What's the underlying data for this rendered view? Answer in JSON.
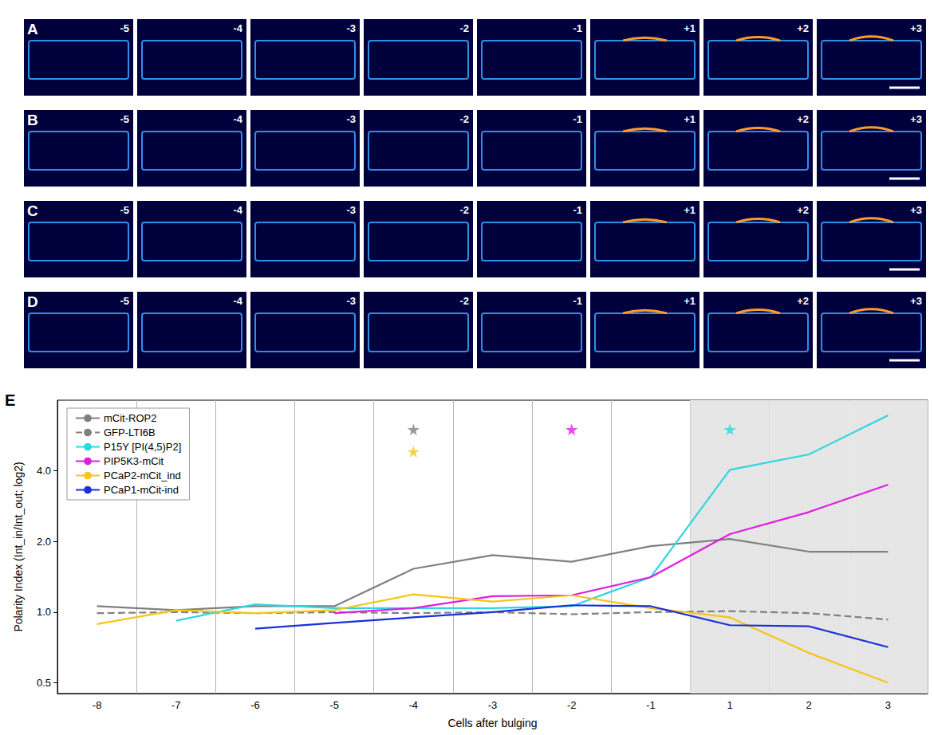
{
  "images": [
    {
      "label": "A",
      "frames": [
        "-5",
        "-4",
        "-3",
        "-2",
        "-1",
        "+1",
        "+2",
        "+3"
      ]
    },
    {
      "label": "B",
      "frames": [
        "-5",
        "-4",
        "-3",
        "-2",
        "-1",
        "+1",
        "+2",
        "+3"
      ]
    },
    {
      "label": "C",
      "frames": [
        "-5",
        "-4",
        "-3",
        "-2",
        "-1",
        "+1",
        "+2",
        "+3"
      ]
    },
    {
      "label": "D",
      "frames": [
        "-5",
        "-4",
        "-3",
        "-2",
        "-1",
        "+1",
        "+2",
        "+3"
      ]
    }
  ],
  "chart_panel": "E",
  "chart_data": {
    "type": "line",
    "x_label": "Cells after bulging",
    "y_label": "Polarity Index (Int_in/Int_out; log2)",
    "categories": [
      "-8",
      "-7",
      "-6",
      "-5",
      "-4",
      "-3",
      "-2",
      "-1",
      "1",
      "2",
      "3"
    ],
    "series": [
      {
        "name": "mCit-ROP2",
        "color": "#808080",
        "line_style": "solid",
        "values": [
          1.06,
          1.02,
          1.06,
          1.06,
          1.53,
          1.75,
          1.64,
          1.91,
          2.05,
          1.81,
          1.81
        ]
      },
      {
        "name": "GFP-LTI6B",
        "color": "#808080",
        "line_style": "dashed",
        "values": [
          0.99,
          1.0,
          0.99,
          1.0,
          0.99,
          1.0,
          0.98,
          1.0,
          1.01,
          0.99,
          0.93
        ]
      },
      {
        "name": "P15Y [PI(4,5)P2]",
        "color": "#2ED6E0",
        "line_style": "solid",
        "values": [
          null,
          0.92,
          1.08,
          1.04,
          1.04,
          1.04,
          1.06,
          1.41,
          4.04,
          4.7,
          6.9
        ]
      },
      {
        "name": "PIP5K3-mCit",
        "color": "#E01EE0",
        "line_style": "solid",
        "values": [
          null,
          null,
          null,
          0.99,
          1.04,
          1.17,
          1.18,
          1.41,
          2.15,
          2.67,
          3.49
        ]
      },
      {
        "name": "PCaP2-mCit_ind",
        "color": "#F5C518",
        "line_style": "solid",
        "values": [
          0.89,
          1.02,
          0.99,
          1.02,
          1.19,
          1.11,
          1.18,
          1.04,
          0.95,
          0.67,
          0.5
        ]
      },
      {
        "name": "PCaP1-mCit-ind",
        "color": "#1A2FD8",
        "line_style": "solid",
        "values": [
          null,
          null,
          0.85,
          0.9,
          0.95,
          1.0,
          1.07,
          1.06,
          0.88,
          0.87,
          0.71
        ]
      }
    ],
    "annotations": [
      {
        "category": "-4",
        "marker": "star",
        "color": "#808080"
      },
      {
        "category": "-4",
        "marker": "star",
        "color": "#F5C518"
      },
      {
        "category": "-2",
        "marker": "star",
        "color": "#E01EE0"
      },
      {
        "category": "1",
        "marker": "star",
        "color": "#2ED6E0"
      }
    ],
    "ylim": [
      0.45,
      8
    ],
    "yticks": [
      0.5,
      {
        "value": 1,
        "label": "1.0"
      },
      {
        "value": 2,
        "label": "2.0"
      },
      {
        "value": 4,
        "label": "4.0"
      }
    ],
    "log": "y",
    "grid": "x",
    "legend": "upper left"
  }
}
